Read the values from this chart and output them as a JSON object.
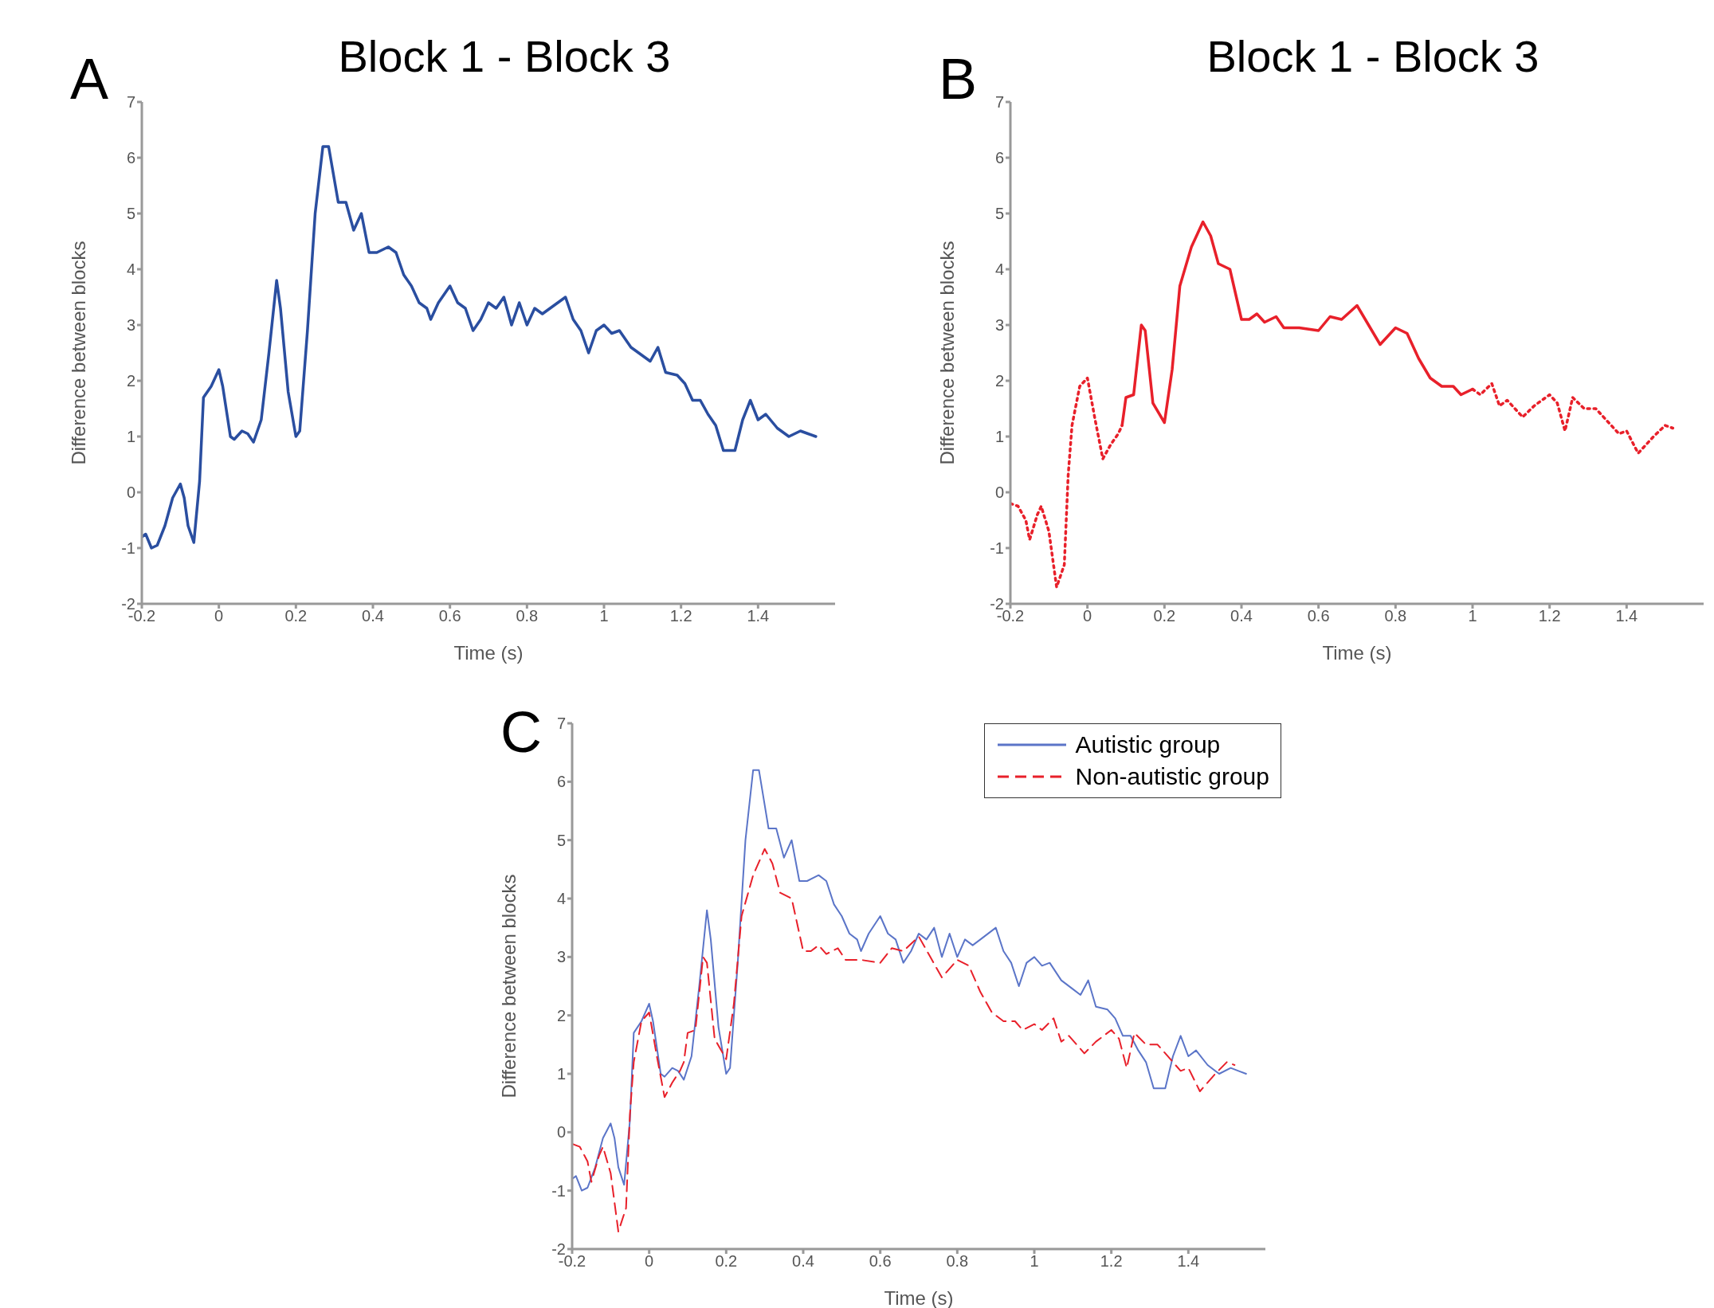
{
  "chart_data": [
    {
      "type": "line",
      "title": "Block 1 - Block 3",
      "xlabel": "Time (s)",
      "ylabel": "Difference between blocks",
      "annotations": [
        "A"
      ],
      "xlim": [
        -0.2,
        1.6
      ],
      "xticks": [
        -0.2,
        0,
        0.2,
        0.4,
        0.6,
        0.8,
        1,
        1.2,
        1.4
      ],
      "ylim": [
        -2,
        7
      ],
      "yticks": [
        -2,
        -1,
        0,
        1,
        2,
        3,
        4,
        5,
        6,
        7
      ],
      "x": [
        -0.2,
        -0.19,
        -0.175,
        -0.16,
        -0.14,
        -0.12,
        -0.1,
        -0.09,
        -0.08,
        -0.065,
        -0.05,
        -0.04,
        -0.02,
        0,
        0.01,
        0.03,
        0.04,
        0.06,
        0.075,
        0.09,
        0.11,
        0.13,
        0.15,
        0.16,
        0.18,
        0.2,
        0.21,
        0.23,
        0.25,
        0.27,
        0.285,
        0.3,
        0.31,
        0.33,
        0.35,
        0.37,
        0.39,
        0.41,
        0.44,
        0.46,
        0.48,
        0.5,
        0.52,
        0.54,
        0.55,
        0.57,
        0.6,
        0.62,
        0.64,
        0.66,
        0.68,
        0.7,
        0.72,
        0.74,
        0.76,
        0.78,
        0.8,
        0.82,
        0.84,
        0.86,
        0.9,
        0.92,
        0.94,
        0.96,
        0.98,
        1,
        1.02,
        1.04,
        1.07,
        1.1,
        1.12,
        1.14,
        1.16,
        1.19,
        1.21,
        1.23,
        1.25,
        1.27,
        1.29,
        1.31,
        1.34,
        1.36,
        1.38,
        1.4,
        1.42,
        1.45,
        1.48,
        1.51,
        1.53,
        1.55
      ],
      "series": [
        {
          "color": "#2a4ea0",
          "line_style": "solid",
          "values": [
            -0.8,
            -0.75,
            -1.0,
            -0.95,
            -0.6,
            -0.1,
            0.15,
            -0.1,
            -0.6,
            -0.9,
            0.2,
            1.7,
            1.9,
            2.2,
            1.9,
            1.0,
            0.95,
            1.1,
            1.05,
            0.9,
            1.3,
            2.5,
            3.8,
            3.3,
            1.8,
            1.0,
            1.1,
            2.9,
            5.0,
            6.2,
            6.2,
            5.6,
            5.2,
            5.2,
            4.7,
            5.0,
            4.3,
            4.3,
            4.4,
            4.3,
            3.9,
            3.7,
            3.4,
            3.3,
            3.1,
            3.4,
            3.7,
            3.4,
            3.3,
            2.9,
            3.1,
            3.4,
            3.3,
            3.5,
            3.0,
            3.4,
            3.0,
            3.3,
            3.2,
            3.3,
            3.5,
            3.1,
            2.9,
            2.5,
            2.9,
            3.0,
            2.85,
            2.9,
            2.6,
            2.45,
            2.35,
            2.6,
            2.15,
            2.1,
            1.95,
            1.65,
            1.65,
            1.4,
            1.2,
            0.75,
            0.75,
            1.3,
            1.65,
            1.3,
            1.4,
            1.15,
            1.0,
            1.1,
            1.05,
            1.0
          ]
        }
      ]
    },
    {
      "type": "line",
      "title": "Block 1 - Block 3",
      "xlabel": "Time (s)",
      "ylabel": "Difference between blocks",
      "annotations": [
        "B"
      ],
      "xlim": [
        -0.2,
        1.6
      ],
      "xticks": [
        -0.2,
        0,
        0.2,
        0.4,
        0.6,
        0.8,
        1,
        1.2,
        1.4
      ],
      "ylim": [
        -2,
        7
      ],
      "yticks": [
        -2,
        -1,
        0,
        1,
        2,
        3,
        4,
        5,
        6,
        7
      ],
      "series": [
        {
          "color": "#e8202a",
          "line_style": "dotted",
          "x": [
            -0.2,
            -0.18,
            -0.16,
            -0.15,
            -0.13,
            -0.12,
            -0.1,
            -0.08,
            -0.06,
            -0.05,
            -0.04,
            -0.02,
            0,
            0.02,
            0.04,
            0.06,
            0.08,
            0.09,
            0.5,
            1,
            1.02,
            1.05,
            1.07,
            1.09,
            1.13,
            1.16,
            1.2,
            1.22,
            1.24,
            1.26,
            1.29,
            1.32,
            1.36,
            1.38,
            1.4,
            1.43,
            1.47,
            1.5,
            1.52
          ],
          "values": [
            -0.2,
            -0.25,
            -0.5,
            -0.85,
            -0.4,
            -0.25,
            -0.7,
            -1.7,
            -1.3,
            0.3,
            1.2,
            1.9,
            2.05,
            1.3,
            0.6,
            0.85,
            1.05,
            1.2,
            null,
            1.85,
            1.75,
            1.95,
            1.55,
            1.65,
            1.35,
            1.55,
            1.75,
            1.6,
            1.1,
            1.7,
            1.5,
            1.5,
            1.2,
            1.05,
            1.1,
            0.7,
            1.0,
            1.2,
            1.15
          ]
        },
        {
          "color": "#e8202a",
          "line_style": "solid",
          "x": [
            0.09,
            0.1,
            0.12,
            0.14,
            0.15,
            0.17,
            0.2,
            0.22,
            0.24,
            0.27,
            0.3,
            0.32,
            0.34,
            0.37,
            0.4,
            0.42,
            0.44,
            0.46,
            0.49,
            0.51,
            0.55,
            0.6,
            0.63,
            0.66,
            0.7,
            0.73,
            0.76,
            0.8,
            0.83,
            0.86,
            0.89,
            0.92,
            0.95,
            0.97,
            1
          ],
          "values": [
            1.2,
            1.7,
            1.75,
            3.0,
            2.9,
            1.6,
            1.25,
            2.2,
            3.7,
            4.4,
            4.85,
            4.6,
            4.1,
            4.0,
            3.1,
            3.1,
            3.2,
            3.05,
            3.15,
            2.95,
            2.95,
            2.9,
            3.15,
            3.1,
            3.35,
            3.0,
            2.65,
            2.95,
            2.85,
            2.4,
            2.05,
            1.9,
            1.9,
            1.75,
            1.85
          ]
        }
      ]
    },
    {
      "type": "line",
      "xlabel": "Time (s)",
      "ylabel": "Difference between blocks",
      "annotations": [
        "C"
      ],
      "legend": "top right",
      "xlim": [
        -0.2,
        1.6
      ],
      "xticks": [
        -0.2,
        0,
        0.2,
        0.4,
        0.6,
        0.8,
        1,
        1.2,
        1.4
      ],
      "ylim": [
        -2,
        7
      ],
      "yticks": [
        -2,
        -1,
        0,
        1,
        2,
        3,
        4,
        5,
        6,
        7
      ],
      "series": [
        {
          "name": "Autistic group",
          "color": "#5b75c8",
          "line_style": "solid",
          "x": [
            -0.2,
            -0.19,
            -0.175,
            -0.16,
            -0.14,
            -0.12,
            -0.1,
            -0.09,
            -0.08,
            -0.065,
            -0.05,
            -0.04,
            -0.02,
            0,
            0.01,
            0.03,
            0.04,
            0.06,
            0.075,
            0.09,
            0.11,
            0.13,
            0.15,
            0.16,
            0.18,
            0.2,
            0.21,
            0.23,
            0.25,
            0.27,
            0.285,
            0.3,
            0.31,
            0.33,
            0.35,
            0.37,
            0.39,
            0.41,
            0.44,
            0.46,
            0.48,
            0.5,
            0.52,
            0.54,
            0.55,
            0.57,
            0.6,
            0.62,
            0.64,
            0.66,
            0.68,
            0.7,
            0.72,
            0.74,
            0.76,
            0.78,
            0.8,
            0.82,
            0.84,
            0.86,
            0.9,
            0.92,
            0.94,
            0.96,
            0.98,
            1,
            1.02,
            1.04,
            1.07,
            1.1,
            1.12,
            1.14,
            1.16,
            1.19,
            1.21,
            1.23,
            1.25,
            1.27,
            1.29,
            1.31,
            1.34,
            1.36,
            1.38,
            1.4,
            1.42,
            1.45,
            1.48,
            1.51,
            1.53,
            1.55
          ],
          "values": [
            -0.8,
            -0.75,
            -1.0,
            -0.95,
            -0.6,
            -0.1,
            0.15,
            -0.1,
            -0.6,
            -0.9,
            0.2,
            1.7,
            1.9,
            2.2,
            1.9,
            1.0,
            0.95,
            1.1,
            1.05,
            0.9,
            1.3,
            2.5,
            3.8,
            3.3,
            1.8,
            1.0,
            1.1,
            2.9,
            5.0,
            6.2,
            6.2,
            5.6,
            5.2,
            5.2,
            4.7,
            5.0,
            4.3,
            4.3,
            4.4,
            4.3,
            3.9,
            3.7,
            3.4,
            3.3,
            3.1,
            3.4,
            3.7,
            3.4,
            3.3,
            2.9,
            3.1,
            3.4,
            3.3,
            3.5,
            3.0,
            3.4,
            3.0,
            3.3,
            3.2,
            3.3,
            3.5,
            3.1,
            2.9,
            2.5,
            2.9,
            3.0,
            2.85,
            2.9,
            2.6,
            2.45,
            2.35,
            2.6,
            2.15,
            2.1,
            1.95,
            1.65,
            1.65,
            1.4,
            1.2,
            0.75,
            0.75,
            1.3,
            1.65,
            1.3,
            1.4,
            1.15,
            1.0,
            1.1,
            1.05,
            1.0
          ]
        },
        {
          "name": "Non-autistic group",
          "color": "#e8202a",
          "line_style": "dashed",
          "x": [
            -0.2,
            -0.18,
            -0.16,
            -0.15,
            -0.13,
            -0.12,
            -0.1,
            -0.08,
            -0.06,
            -0.05,
            -0.04,
            -0.02,
            0,
            0.02,
            0.04,
            0.06,
            0.08,
            0.09,
            0.1,
            0.12,
            0.14,
            0.15,
            0.17,
            0.2,
            0.22,
            0.24,
            0.27,
            0.3,
            0.32,
            0.34,
            0.37,
            0.4,
            0.42,
            0.44,
            0.46,
            0.49,
            0.51,
            0.55,
            0.6,
            0.63,
            0.66,
            0.7,
            0.73,
            0.76,
            0.8,
            0.83,
            0.86,
            0.89,
            0.92,
            0.95,
            0.97,
            1,
            1.02,
            1.05,
            1.07,
            1.09,
            1.13,
            1.16,
            1.2,
            1.22,
            1.24,
            1.26,
            1.29,
            1.32,
            1.36,
            1.38,
            1.4,
            1.43,
            1.47,
            1.5,
            1.52
          ],
          "values": [
            -0.2,
            -0.25,
            -0.5,
            -0.85,
            -0.4,
            -0.25,
            -0.7,
            -1.7,
            -1.3,
            0.3,
            1.2,
            1.9,
            2.05,
            1.3,
            0.6,
            0.85,
            1.05,
            1.2,
            1.7,
            1.75,
            3.0,
            2.9,
            1.6,
            1.25,
            2.2,
            3.7,
            4.4,
            4.85,
            4.6,
            4.1,
            4.0,
            3.1,
            3.1,
            3.2,
            3.05,
            3.15,
            2.95,
            2.95,
            2.9,
            3.15,
            3.1,
            3.35,
            3.0,
            2.65,
            2.95,
            2.85,
            2.4,
            2.05,
            1.9,
            1.9,
            1.75,
            1.85,
            1.75,
            1.95,
            1.55,
            1.65,
            1.35,
            1.55,
            1.75,
            1.6,
            1.1,
            1.7,
            1.5,
            1.5,
            1.2,
            1.05,
            1.1,
            0.7,
            1.0,
            1.2,
            1.15
          ]
        }
      ]
    }
  ]
}
